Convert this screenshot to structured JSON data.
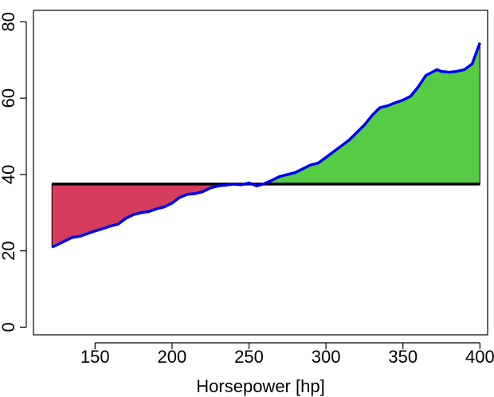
{
  "chart_data": {
    "type": "area",
    "title": "",
    "xlabel": "Horsepower [hp]",
    "ylabel": "",
    "xlim": [
      110,
      405
    ],
    "ylim": [
      -2,
      83
    ],
    "xticks": [
      150,
      200,
      250,
      300,
      350,
      400
    ],
    "yticks": [
      0,
      20,
      40,
      60,
      80
    ],
    "xtick_labels": [
      "150",
      "200",
      "250",
      "300",
      "350",
      "400"
    ],
    "ytick_labels": [
      "0",
      "20",
      "40",
      "60",
      "80"
    ],
    "grid": false,
    "legend": "none",
    "baseline": 37.5,
    "colors": {
      "line": "#0000ee",
      "baseline": "#000000",
      "below_fill": "#d63d5a",
      "above_fill": "#55cc44"
    },
    "series": [
      {
        "x": [
          122,
          125,
          130,
          135,
          140,
          145,
          150,
          155,
          160,
          165,
          170,
          175,
          180,
          185,
          190,
          195,
          200,
          205,
          210,
          215,
          220,
          225,
          230,
          235,
          240,
          245,
          250,
          255,
          260,
          265,
          270,
          275,
          280,
          285,
          290,
          295,
          300,
          305,
          310,
          315,
          320,
          325,
          330,
          335,
          340,
          345,
          350,
          355,
          360,
          365,
          370,
          372,
          375,
          380,
          385,
          390,
          395,
          400
        ],
        "y": [
          21,
          21.5,
          22.5,
          23.5,
          23.8,
          24.5,
          25.2,
          25.8,
          26.5,
          27,
          28.5,
          29.5,
          30,
          30.3,
          31,
          31.5,
          32.5,
          34,
          34.8,
          35,
          35.5,
          36.5,
          37,
          37.2,
          37.5,
          37.3,
          37.8,
          37,
          37.6,
          38.5,
          39.5,
          40,
          40.5,
          41.5,
          42.5,
          43,
          44.5,
          46,
          47.5,
          49,
          51,
          53,
          55.5,
          57.5,
          58,
          58.8,
          59.5,
          60.5,
          63,
          66,
          67,
          67.5,
          67,
          66.8,
          67,
          67.5,
          69,
          74.5
        ]
      }
    ]
  }
}
